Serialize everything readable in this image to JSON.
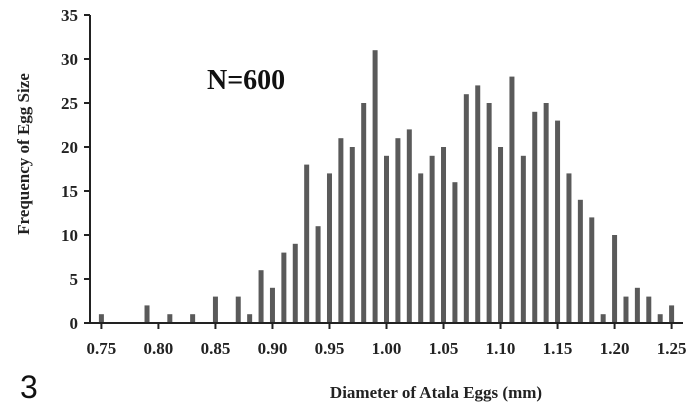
{
  "figure_number": "3",
  "chart_data": {
    "type": "bar",
    "annotation": "N=600",
    "xlabel": "Diameter of Atala Eggs (mm)",
    "ylabel": "Frequency of Egg Size",
    "xlim": [
      0.74,
      1.26
    ],
    "ylim": [
      0,
      35
    ],
    "x_ticks": [
      "0.75",
      "0.80",
      "0.85",
      "0.90",
      "0.95",
      "1.00",
      "1.05",
      "1.10",
      "1.15",
      "1.20",
      "1.25"
    ],
    "y_ticks": [
      "0",
      "5",
      "10",
      "15",
      "20",
      "25",
      "30",
      "35"
    ],
    "grid": false,
    "bar_color": "#5a5a5a",
    "x": [
      0.75,
      0.79,
      0.81,
      0.83,
      0.85,
      0.87,
      0.88,
      0.89,
      0.9,
      0.91,
      0.92,
      0.93,
      0.94,
      0.95,
      0.96,
      0.97,
      0.98,
      0.99,
      1.0,
      1.01,
      1.02,
      1.03,
      1.04,
      1.05,
      1.06,
      1.07,
      1.08,
      1.09,
      1.1,
      1.11,
      1.12,
      1.13,
      1.14,
      1.15,
      1.16,
      1.17,
      1.18,
      1.19,
      1.2,
      1.21,
      1.22,
      1.23,
      1.24,
      1.25
    ],
    "values": [
      1,
      2,
      1,
      1,
      3,
      3,
      1,
      6,
      4,
      8,
      9,
      18,
      11,
      17,
      21,
      20,
      25,
      31,
      19,
      21,
      22,
      17,
      19,
      20,
      16,
      26,
      27,
      25,
      20,
      28,
      19,
      24,
      25,
      23,
      17,
      14,
      12,
      1,
      10,
      3,
      4,
      3,
      1,
      2
    ]
  }
}
